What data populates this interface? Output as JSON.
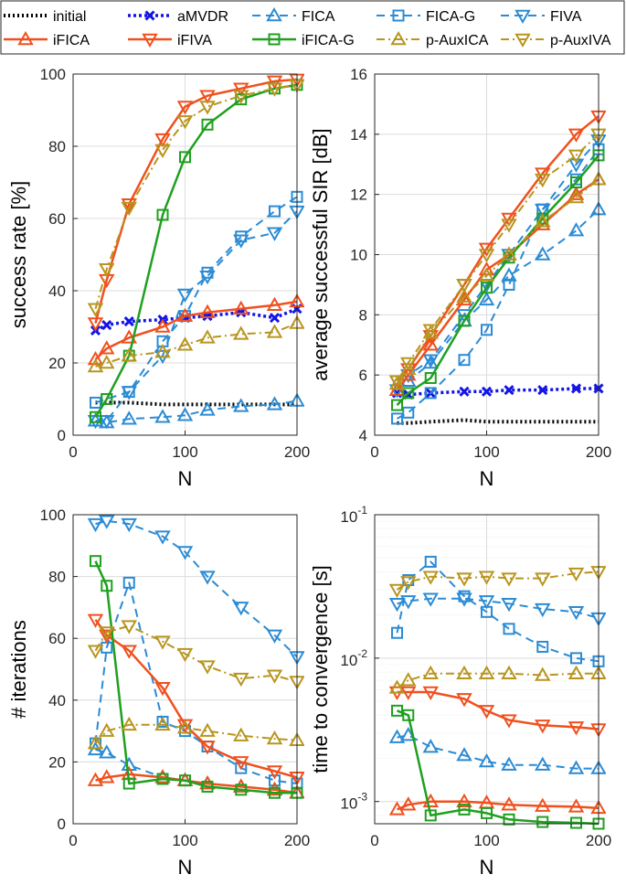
{
  "legend": [
    {
      "name": "initial",
      "color": "#000000",
      "dash": "2,3",
      "width": 4,
      "marker": "none"
    },
    {
      "name": "aMVDR",
      "color": "#1414e6",
      "dash": "3,3",
      "width": 3.5,
      "marker": "x"
    },
    {
      "name": "FICA",
      "color": "#2b8bd4",
      "dash": "9,6",
      "width": 2,
      "marker": "tri-up"
    },
    {
      "name": "FICA-G",
      "color": "#2b8bd4",
      "dash": "9,6",
      "width": 2,
      "marker": "square"
    },
    {
      "name": "FIVA",
      "color": "#2b8bd4",
      "dash": "9,6",
      "width": 2,
      "marker": "tri-down"
    },
    {
      "name": "iFICA",
      "color": "#f0501e",
      "dash": "",
      "width": 2.5,
      "marker": "tri-up"
    },
    {
      "name": "iFIVA",
      "color": "#f0501e",
      "dash": "",
      "width": 2.5,
      "marker": "tri-down"
    },
    {
      "name": "iFICA-G",
      "color": "#1fa01f",
      "dash": "",
      "width": 2.5,
      "marker": "square"
    },
    {
      "name": "p-AuxICA",
      "color": "#b8951e",
      "dash": "9,4,2,4",
      "width": 2,
      "marker": "tri-up"
    },
    {
      "name": "p-AuxIVA",
      "color": "#b8951e",
      "dash": "9,4,2,4",
      "width": 2,
      "marker": "tri-down"
    }
  ],
  "chart_data": [
    {
      "type": "line",
      "id": "success-rate",
      "xlabel": "N",
      "ylabel": "success rate [%]",
      "xlim": [
        0,
        200
      ],
      "ylim": [
        0,
        100
      ],
      "xticks": [
        0,
        100,
        200
      ],
      "yticks": [
        0,
        20,
        40,
        60,
        80,
        100
      ],
      "yscale": "linear",
      "grid": true,
      "series": [
        {
          "name": "initial",
          "x": [
            20,
            30,
            50,
            80,
            100,
            120,
            150,
            180,
            200
          ],
          "y": [
            9,
            9,
            9,
            8.5,
            8.5,
            8.5,
            8.5,
            8.5,
            8.5
          ]
        },
        {
          "name": "aMVDR",
          "x": [
            20,
            30,
            50,
            80,
            100,
            120,
            150,
            180,
            200
          ],
          "y": [
            29,
            30.5,
            31.5,
            32,
            32.5,
            33,
            34,
            32.5,
            35
          ]
        },
        {
          "name": "FICA",
          "x": [
            20,
            30,
            50,
            80,
            100,
            120,
            150,
            180,
            200
          ],
          "y": [
            4,
            3.5,
            4.5,
            5,
            5.5,
            7,
            8,
            8.5,
            9.5
          ]
        },
        {
          "name": "FICA-G",
          "x": [
            20,
            30,
            50,
            80,
            100,
            120,
            150,
            180,
            200
          ],
          "y": [
            9,
            10,
            12,
            26,
            33,
            45,
            55,
            62,
            66
          ]
        },
        {
          "name": "FIVA",
          "x": [
            20,
            30,
            50,
            80,
            100,
            120,
            150,
            180,
            200
          ],
          "y": [
            4,
            4,
            12,
            22,
            39,
            44,
            54,
            56,
            62
          ]
        },
        {
          "name": "iFICA",
          "x": [
            20,
            30,
            50,
            80,
            100,
            120,
            150,
            180,
            200
          ],
          "y": [
            21,
            24,
            27,
            30,
            33,
            34,
            35,
            36,
            37
          ]
        },
        {
          "name": "iFIVA",
          "x": [
            20,
            30,
            50,
            80,
            100,
            120,
            150,
            180,
            200
          ],
          "y": [
            31,
            43,
            64,
            82,
            91,
            94,
            96,
            98,
            98.5
          ]
        },
        {
          "name": "iFICA-G",
          "x": [
            20,
            30,
            50,
            80,
            100,
            120,
            150,
            180,
            200
          ],
          "y": [
            5,
            10,
            22,
            61,
            77,
            86,
            93,
            96,
            97
          ]
        },
        {
          "name": "p-AuxICA",
          "x": [
            20,
            30,
            50,
            80,
            100,
            120,
            150,
            180,
            200
          ],
          "y": [
            19,
            20,
            22,
            23,
            25,
            27,
            28,
            28.5,
            31
          ]
        },
        {
          "name": "p-AuxIVA",
          "x": [
            20,
            30,
            50,
            80,
            100,
            120,
            150,
            180,
            200
          ],
          "y": [
            35,
            46,
            63,
            79,
            87,
            91,
            94,
            96,
            97
          ]
        }
      ]
    },
    {
      "type": "line",
      "id": "avg-sir",
      "xlabel": "N",
      "ylabel": "average successful SIR [dB]",
      "xlim": [
        0,
        200
      ],
      "ylim": [
        4,
        16
      ],
      "xticks": [
        0,
        100,
        200
      ],
      "yticks": [
        4,
        6,
        8,
        10,
        12,
        14,
        16
      ],
      "yscale": "linear",
      "grid": true,
      "series": [
        {
          "name": "initial",
          "x": [
            20,
            30,
            50,
            80,
            100,
            120,
            150,
            180,
            200
          ],
          "y": [
            4.4,
            4.4,
            4.45,
            4.5,
            4.45,
            4.45,
            4.45,
            4.45,
            4.45
          ]
        },
        {
          "name": "aMVDR",
          "x": [
            20,
            30,
            50,
            80,
            100,
            120,
            150,
            180,
            200
          ],
          "y": [
            5.4,
            5.35,
            5.4,
            5.45,
            5.45,
            5.5,
            5.5,
            5.55,
            5.55
          ]
        },
        {
          "name": "FICA",
          "x": [
            20,
            30,
            50,
            80,
            100,
            120,
            150,
            180,
            200
          ],
          "y": [
            5.5,
            5.8,
            6.4,
            7.8,
            8.5,
            9.3,
            10,
            10.8,
            11.5
          ]
        },
        {
          "name": "FICA-G",
          "x": [
            20,
            30,
            50,
            80,
            100,
            120,
            150,
            180,
            200
          ],
          "y": [
            4.55,
            4.75,
            5.4,
            6.5,
            7.5,
            9,
            11.5,
            12.5,
            13.5
          ]
        },
        {
          "name": "FIVA",
          "x": [
            20,
            30,
            50,
            80,
            100,
            120,
            150,
            180,
            200
          ],
          "y": [
            5.5,
            6,
            6.5,
            8,
            9,
            10,
            11.5,
            13,
            13.8
          ]
        },
        {
          "name": "iFICA",
          "x": [
            20,
            30,
            50,
            80,
            100,
            120,
            150,
            180,
            200
          ],
          "y": [
            5.5,
            6,
            7,
            8.5,
            9.5,
            10,
            11,
            12,
            12.5
          ]
        },
        {
          "name": "iFIVA",
          "x": [
            20,
            30,
            50,
            80,
            100,
            120,
            150,
            180,
            200
          ],
          "y": [
            5.8,
            6.2,
            7.3,
            9,
            10.2,
            11.2,
            12.7,
            14,
            14.6
          ]
        },
        {
          "name": "iFICA-G",
          "x": [
            20,
            30,
            50,
            80,
            100,
            120,
            150,
            180,
            200
          ],
          "y": [
            5,
            5.4,
            5.9,
            7.8,
            8.9,
            9.9,
            11.2,
            12.4,
            13.3
          ]
        },
        {
          "name": "p-AuxICA",
          "x": [
            20,
            30,
            50,
            80,
            100,
            120,
            150,
            180,
            200
          ],
          "y": [
            5.7,
            6.2,
            7.4,
            8.6,
            9.3,
            10,
            11.1,
            11.9,
            12.5
          ]
        },
        {
          "name": "p-AuxIVA",
          "x": [
            20,
            30,
            50,
            80,
            100,
            120,
            150,
            180,
            200
          ],
          "y": [
            5.8,
            6.4,
            7.5,
            9,
            10,
            11,
            12.5,
            13.3,
            14
          ]
        }
      ]
    },
    {
      "type": "line",
      "id": "iterations",
      "xlabel": "N",
      "ylabel": "# iterations",
      "xlim": [
        0,
        200
      ],
      "ylim": [
        0,
        100
      ],
      "xticks": [
        0,
        100,
        200
      ],
      "yticks": [
        0,
        20,
        40,
        60,
        80,
        100
      ],
      "yscale": "linear",
      "grid": true,
      "series": [
        {
          "name": "FICA",
          "x": [
            20,
            30,
            50,
            80,
            100,
            120,
            150,
            180,
            200
          ],
          "y": [
            24,
            23,
            19,
            15,
            14,
            13,
            12,
            11,
            10
          ]
        },
        {
          "name": "FICA-G",
          "x": [
            20,
            30,
            50,
            80,
            100,
            120,
            150,
            180,
            200
          ],
          "y": [
            26,
            57,
            78,
            33,
            30,
            25,
            18,
            14,
            13
          ]
        },
        {
          "name": "FIVA",
          "x": [
            20,
            30,
            50,
            80,
            100,
            120,
            150,
            180,
            200
          ],
          "y": [
            97,
            98,
            97,
            93,
            88,
            80,
            70,
            61,
            54
          ]
        },
        {
          "name": "iFICA",
          "x": [
            20,
            30,
            50,
            80,
            100,
            120,
            150,
            180,
            200
          ],
          "y": [
            14,
            15,
            16,
            15,
            14,
            13,
            12,
            11,
            10
          ]
        },
        {
          "name": "iFIVA",
          "x": [
            20,
            30,
            50,
            80,
            100,
            120,
            150,
            180,
            200
          ],
          "y": [
            66,
            61,
            56,
            44,
            32,
            25,
            20,
            17,
            15
          ]
        },
        {
          "name": "iFICA-G",
          "x": [
            20,
            30,
            50,
            80,
            100,
            120,
            150,
            180,
            200
          ],
          "y": [
            85,
            77,
            13,
            14.5,
            14,
            12,
            11,
            10,
            10
          ]
        },
        {
          "name": "p-AuxICA",
          "x": [
            20,
            30,
            50,
            80,
            100,
            120,
            150,
            180,
            200
          ],
          "y": [
            26,
            30,
            32,
            32,
            31,
            30,
            28.5,
            27.5,
            27
          ]
        },
        {
          "name": "p-AuxIVA",
          "x": [
            20,
            30,
            50,
            80,
            100,
            120,
            150,
            180,
            200
          ],
          "y": [
            56,
            62,
            64,
            59,
            55,
            51,
            47,
            48,
            46
          ]
        }
      ]
    },
    {
      "type": "line",
      "id": "time-to-convergence",
      "xlabel": "N",
      "ylabel": "time to convergence [s]",
      "xlim": [
        0,
        200
      ],
      "ylim": [
        0.0007,
        0.1
      ],
      "xticks": [
        0,
        100,
        200
      ],
      "yticks": [
        0.001,
        0.01,
        0.1
      ],
      "ytick_labels": [
        {
          "base": "10",
          "exp": "-3"
        },
        {
          "base": "10",
          "exp": "-2"
        },
        {
          "base": "10",
          "exp": "-1"
        }
      ],
      "yscale": "log",
      "grid": true,
      "series": [
        {
          "name": "FICA",
          "x": [
            20,
            30,
            50,
            80,
            100,
            120,
            150,
            180,
            200
          ],
          "y": [
            0.0028,
            0.0029,
            0.0024,
            0.0021,
            0.0019,
            0.0018,
            0.0018,
            0.0017,
            0.0017
          ]
        },
        {
          "name": "FICA-G",
          "x": [
            20,
            30,
            50,
            80,
            100,
            120,
            150,
            180,
            200
          ],
          "y": [
            0.015,
            0.035,
            0.047,
            0.027,
            0.021,
            0.016,
            0.012,
            0.01,
            0.0095
          ]
        },
        {
          "name": "FIVA",
          "x": [
            20,
            30,
            50,
            80,
            100,
            120,
            150,
            180,
            200
          ],
          "y": [
            0.024,
            0.025,
            0.026,
            0.026,
            0.025,
            0.024,
            0.022,
            0.021,
            0.019
          ]
        },
        {
          "name": "iFICA",
          "x": [
            20,
            30,
            50,
            80,
            100,
            120,
            150,
            180,
            200
          ],
          "y": [
            0.00088,
            0.00095,
            0.001,
            0.001,
            0.00098,
            0.00095,
            0.00093,
            0.00092,
            0.0009
          ]
        },
        {
          "name": "iFIVA",
          "x": [
            20,
            30,
            50,
            80,
            100,
            120,
            150,
            180,
            200
          ],
          "y": [
            0.0058,
            0.0058,
            0.0058,
            0.0052,
            0.0043,
            0.0037,
            0.0034,
            0.0033,
            0.0032
          ]
        },
        {
          "name": "iFICA-G",
          "x": [
            20,
            30,
            50,
            80,
            100,
            120,
            150,
            180,
            200
          ],
          "y": [
            0.0043,
            0.004,
            0.0008,
            0.00088,
            0.00083,
            0.00075,
            0.00072,
            0.00071,
            0.0007
          ]
        },
        {
          "name": "p-AuxICA",
          "x": [
            20,
            30,
            50,
            80,
            100,
            120,
            150,
            180,
            200
          ],
          "y": [
            0.0062,
            0.007,
            0.0078,
            0.0078,
            0.0078,
            0.0078,
            0.0076,
            0.0078,
            0.0078
          ]
        },
        {
          "name": "p-AuxIVA",
          "x": [
            20,
            30,
            50,
            80,
            100,
            120,
            150,
            180,
            200
          ],
          "y": [
            0.03,
            0.034,
            0.037,
            0.036,
            0.037,
            0.036,
            0.036,
            0.039,
            0.04
          ]
        }
      ]
    }
  ]
}
